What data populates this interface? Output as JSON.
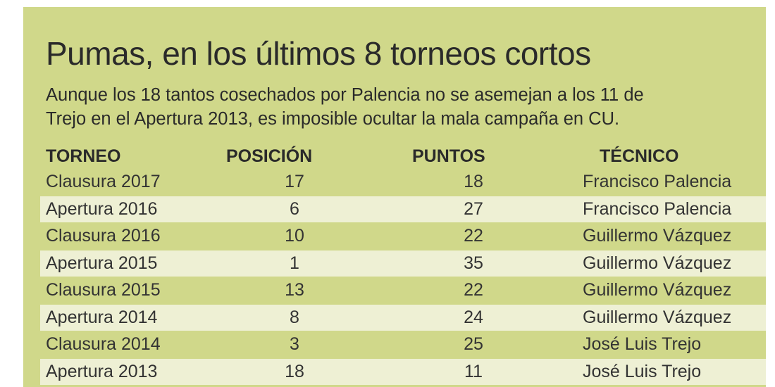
{
  "title": "Pumas, en los últimos 8 torneos cortos",
  "subtitle_lines": [
    "Aunque los 18 tantos cosechados por Palencia no se asemejan a los 11 de",
    "Trejo en el Apertura 2013, es imposible ocultar la mala campaña en CU."
  ],
  "colors": {
    "panel_background": "#d0d88a",
    "alt_row_background": "#eef0d4",
    "text": "#2a2a2a"
  },
  "chart_data": {
    "type": "table",
    "columns": [
      "TORNEO",
      "POSICIÓN",
      "PUNTOS",
      "TÉCNICO"
    ],
    "rows": [
      {
        "torneo": "Clausura 2017",
        "posicion": "17",
        "puntos": "18",
        "tecnico": "Francisco Palencia"
      },
      {
        "torneo": "Apertura 2016",
        "posicion": "6",
        "puntos": "27",
        "tecnico": "Francisco Palencia"
      },
      {
        "torneo": "Clausura 2016",
        "posicion": "10",
        "puntos": "22",
        "tecnico": "Guillermo Vázquez"
      },
      {
        "torneo": "Apertura 2015",
        "posicion": "1",
        "puntos": "35",
        "tecnico": "Guillermo Vázquez"
      },
      {
        "torneo": "Clausura 2015",
        "posicion": "13",
        "puntos": "22",
        "tecnico": "Guillermo Vázquez"
      },
      {
        "torneo": "Apertura 2014",
        "posicion": "8",
        "puntos": "24",
        "tecnico": "Guillermo Vázquez"
      },
      {
        "torneo": "Clausura 2014",
        "posicion": "3",
        "puntos": "25",
        "tecnico": "José Luis Trejo"
      },
      {
        "torneo": "Apertura 2013",
        "posicion": "18",
        "puntos": "11",
        "tecnico": "José Luis Trejo"
      }
    ]
  }
}
